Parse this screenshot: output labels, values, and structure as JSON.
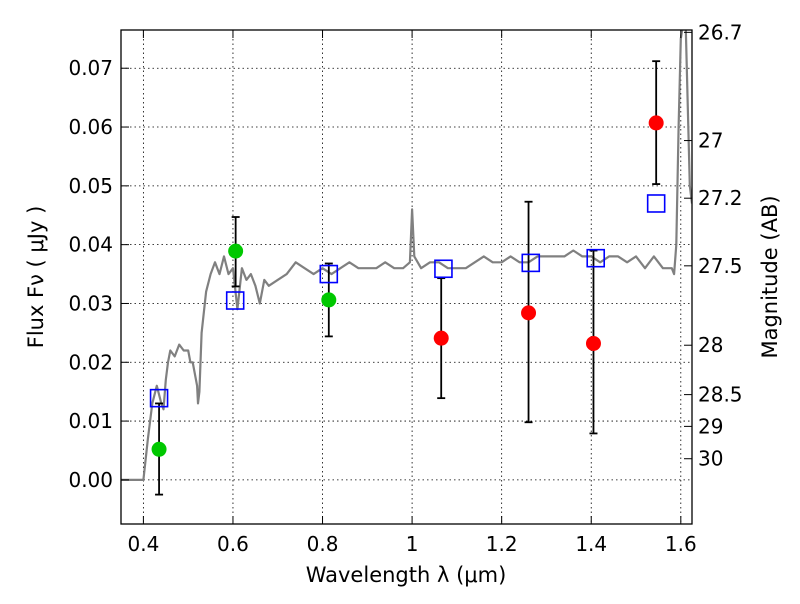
{
  "chart_data": {
    "type": "scatter",
    "title": "",
    "xlabel": "Wavelength  λ (μm)",
    "ylabel": "Flux  Fν  ( μJy )",
    "ylabel_right": "Magnitude (AB)",
    "xlim": [
      0.35,
      1.625
    ],
    "ylim": [
      -0.0075,
      0.0765
    ],
    "grid": true,
    "x_ticks": [
      0.4,
      0.6,
      0.8,
      1.0,
      1.2,
      1.4,
      1.6
    ],
    "x_tick_labels": [
      "0.4",
      "0.6",
      "0.8",
      "1",
      "1.2",
      "1.4",
      "1.6"
    ],
    "y_ticks": [
      0.0,
      0.01,
      0.02,
      0.03,
      0.04,
      0.05,
      0.06,
      0.07
    ],
    "y_tick_labels": [
      "0.00",
      "0.01",
      "0.02",
      "0.03",
      "0.04",
      "0.05",
      "0.06",
      "0.07"
    ],
    "right_ticks": [
      {
        "label": "26.7",
        "flux": 0.0761
      },
      {
        "label": "27",
        "flux": 0.0577
      },
      {
        "label": "27.2",
        "flux": 0.0479
      },
      {
        "label": "27.5",
        "flux": 0.0364
      },
      {
        "label": "28",
        "flux": 0.0229
      },
      {
        "label": "28.5",
        "flux": 0.0145
      },
      {
        "label": "29",
        "flux": 0.0091
      },
      {
        "label": "30",
        "flux": 0.0036
      }
    ],
    "series": [
      {
        "type": "line",
        "color": "#808080",
        "x": [
          0.35,
          0.38,
          0.39,
          0.4,
          0.41,
          0.42,
          0.43,
          0.44,
          0.445,
          0.45,
          0.455,
          0.46,
          0.47,
          0.48,
          0.49,
          0.5,
          0.505,
          0.51,
          0.52,
          0.522,
          0.525,
          0.53,
          0.54,
          0.55,
          0.56,
          0.57,
          0.58,
          0.59,
          0.6,
          0.61,
          0.62,
          0.63,
          0.64,
          0.65,
          0.66,
          0.67,
          0.68,
          0.7,
          0.72,
          0.74,
          0.76,
          0.78,
          0.8,
          0.82,
          0.84,
          0.86,
          0.88,
          0.9,
          0.92,
          0.94,
          0.96,
          0.98,
          0.995,
          1.0,
          1.005,
          1.02,
          1.04,
          1.06,
          1.08,
          1.1,
          1.12,
          1.14,
          1.16,
          1.18,
          1.2,
          1.22,
          1.24,
          1.26,
          1.28,
          1.3,
          1.32,
          1.34,
          1.36,
          1.38,
          1.4,
          1.42,
          1.44,
          1.46,
          1.48,
          1.5,
          1.52,
          1.54,
          1.56,
          1.57,
          1.575,
          1.58,
          1.585,
          1.59,
          1.595,
          1.6,
          1.61,
          1.62,
          1.625
        ],
        "y": [
          0.0,
          0.0,
          0.0,
          0.0,
          0.007,
          0.013,
          0.016,
          0.013,
          0.012,
          0.017,
          0.02,
          0.022,
          0.021,
          0.023,
          0.022,
          0.022,
          0.02,
          0.02,
          0.016,
          0.013,
          0.015,
          0.025,
          0.032,
          0.035,
          0.037,
          0.035,
          0.038,
          0.035,
          0.036,
          0.029,
          0.036,
          0.034,
          0.035,
          0.033,
          0.03,
          0.034,
          0.033,
          0.034,
          0.035,
          0.037,
          0.036,
          0.035,
          0.036,
          0.035,
          0.036,
          0.037,
          0.036,
          0.036,
          0.036,
          0.037,
          0.036,
          0.036,
          0.037,
          0.046,
          0.038,
          0.036,
          0.037,
          0.037,
          0.036,
          0.036,
          0.036,
          0.037,
          0.038,
          0.037,
          0.037,
          0.038,
          0.037,
          0.037,
          0.038,
          0.038,
          0.038,
          0.038,
          0.039,
          0.038,
          0.038,
          0.037,
          0.038,
          0.038,
          0.037,
          0.038,
          0.036,
          0.038,
          0.036,
          0.036,
          0.036,
          0.036,
          0.035,
          0.04,
          0.06,
          0.075,
          0.08,
          0.05,
          0.047
        ]
      },
      {
        "type": "scatter",
        "marker": "circle",
        "color": "#00c800",
        "points": [
          {
            "x": 0.435,
            "y": 0.0052,
            "err_low": 0.0077,
            "err_high": 0.0078
          },
          {
            "x": 0.606,
            "y": 0.0389,
            "err_low": 0.006,
            "err_high": 0.0058
          },
          {
            "x": 0.814,
            "y": 0.0306,
            "err_low": 0.0062,
            "err_high": 0.0062
          }
        ]
      },
      {
        "type": "scatter",
        "marker": "circle",
        "color": "#ff0000",
        "points": [
          {
            "x": 1.065,
            "y": 0.0241,
            "err_low": 0.0102,
            "err_high": 0.0102
          },
          {
            "x": 1.26,
            "y": 0.0284,
            "err_low": 0.0186,
            "err_high": 0.0189
          },
          {
            "x": 1.405,
            "y": 0.0232,
            "err_low": 0.0153,
            "err_high": 0.0158
          },
          {
            "x": 1.545,
            "y": 0.0607,
            "err_low": 0.0104,
            "err_high": 0.0105
          }
        ]
      },
      {
        "type": "scatter",
        "marker": "square-open",
        "color": "#0000ff",
        "points": [
          {
            "x": 0.435,
            "y": 0.0139
          },
          {
            "x": 0.605,
            "y": 0.0305
          },
          {
            "x": 0.814,
            "y": 0.035
          },
          {
            "x": 1.07,
            "y": 0.0359
          },
          {
            "x": 1.265,
            "y": 0.0369
          },
          {
            "x": 1.41,
            "y": 0.0377
          },
          {
            "x": 1.545,
            "y": 0.047
          }
        ]
      }
    ]
  }
}
